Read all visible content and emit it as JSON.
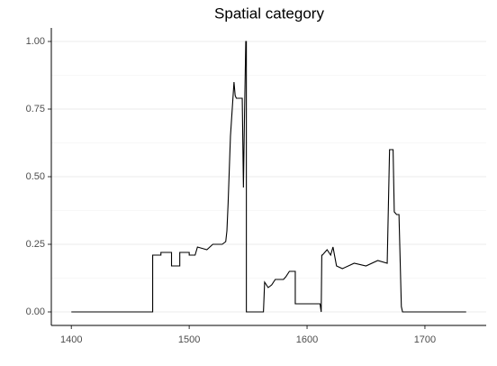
{
  "chart_data": {
    "type": "line",
    "title": "Spatial category",
    "x": [
      1400,
      1469,
      1469,
      1476,
      1476,
      1485,
      1485,
      1492,
      1492,
      1500,
      1500,
      1505,
      1507,
      1515,
      1520,
      1528,
      1531,
      1532,
      1533,
      1535,
      1538,
      1539,
      1540,
      1545,
      1546,
      1547,
      1548,
      1548.5,
      1548.5,
      1563,
      1564,
      1567,
      1570,
      1573,
      1580,
      1582,
      1585,
      1590,
      1590,
      1611,
      1612,
      1612.5,
      1613,
      1617,
      1620,
      1622,
      1625,
      1630,
      1640,
      1650,
      1660,
      1668,
      1669,
      1670,
      1673,
      1674,
      1676,
      1678,
      1680,
      1681,
      1735
    ],
    "series": [
      {
        "name": "Spatial category",
        "color": "#000000",
        "values": [
          0,
          0,
          0.21,
          0.21,
          0.22,
          0.22,
          0.17,
          0.17,
          0.22,
          0.22,
          0.21,
          0.21,
          0.24,
          0.23,
          0.25,
          0.25,
          0.26,
          0.3,
          0.4,
          0.65,
          0.85,
          0.8,
          0.79,
          0.79,
          0.46,
          0.75,
          1.0,
          1.0,
          0,
          0,
          0.11,
          0.09,
          0.1,
          0.12,
          0.12,
          0.13,
          0.15,
          0.15,
          0.03,
          0.03,
          0.0,
          0.21,
          0.21,
          0.23,
          0.21,
          0.24,
          0.17,
          0.16,
          0.18,
          0.17,
          0.19,
          0.18,
          0.39,
          0.6,
          0.6,
          0.37,
          0.36,
          0.36,
          0.02,
          0,
          0
        ]
      }
    ],
    "xlim": [
      1383,
      1752
    ],
    "xticks": [
      1400,
      1500,
      1600,
      1700
    ],
    "ylim": [
      -0.05,
      1.05
    ],
    "yticks": [
      {
        "value": 0,
        "label": "0.00"
      },
      {
        "value": 0.25,
        "label": "0.25"
      },
      {
        "value": 0.5,
        "label": "0.50"
      },
      {
        "value": 0.75,
        "label": "0.75"
      },
      {
        "value": 1,
        "label": "1.00"
      }
    ],
    "grid": true
  }
}
